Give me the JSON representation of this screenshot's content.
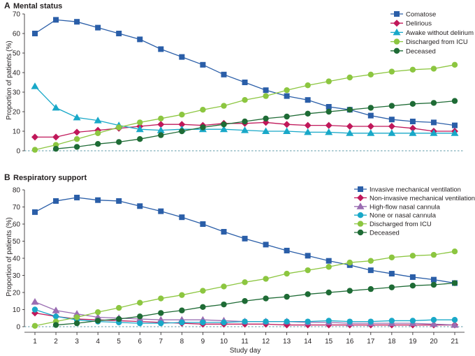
{
  "chart_data": [
    {
      "type": "line",
      "panel_letter": "A",
      "title": "Mental status",
      "ylabel": "Proportion of patients (%)",
      "xlabel": "",
      "ylim": [
        0,
        70
      ],
      "yticks": [
        0,
        10,
        20,
        30,
        40,
        50,
        60,
        70
      ],
      "xlim": [
        1,
        21
      ],
      "legend_position": "top-right",
      "reference_line": 0,
      "series": [
        {
          "name": "Comatose",
          "marker": "square",
          "color": "#2a5ea8",
          "x": [
            1,
            2,
            3,
            4,
            5,
            6,
            7,
            8,
            9,
            10,
            11,
            12,
            13,
            14,
            15,
            16,
            17,
            18,
            19,
            20,
            21
          ],
          "values": [
            60,
            67,
            66,
            63,
            60,
            57,
            52,
            48,
            44,
            39,
            35,
            31,
            28,
            26,
            22.5,
            21,
            18,
            16,
            15,
            14.5,
            13
          ]
        },
        {
          "name": "Delirious",
          "marker": "diamond",
          "color": "#c0185a",
          "x": [
            1,
            2,
            3,
            4,
            5,
            6,
            7,
            8,
            9,
            10,
            11,
            12,
            13,
            14,
            15,
            16,
            17,
            18,
            19,
            20,
            21
          ],
          "values": [
            7,
            7,
            9.5,
            10.5,
            11.5,
            12.5,
            13.5,
            13.5,
            13,
            14,
            14,
            14.5,
            13.5,
            13,
            13,
            12.5,
            12.5,
            12.5,
            11.5,
            10,
            10
          ]
        },
        {
          "name": "Awake without delirium",
          "marker": "triangle",
          "color": "#18a8c8",
          "x": [
            1,
            2,
            3,
            4,
            5,
            6,
            7,
            8,
            9,
            10,
            11,
            12,
            13,
            14,
            15,
            16,
            17,
            18,
            19,
            20,
            21
          ],
          "values": [
            33,
            22,
            17,
            15.5,
            13,
            11,
            10.5,
            11,
            11,
            11,
            10.5,
            10,
            10,
            9.5,
            9.5,
            9,
            9,
            9,
            9,
            9,
            9
          ]
        },
        {
          "name": "Discharged from ICU",
          "marker": "circle",
          "color": "#8cc640",
          "x": [
            1,
            2,
            3,
            4,
            5,
            6,
            7,
            8,
            9,
            10,
            11,
            12,
            13,
            14,
            15,
            16,
            17,
            18,
            19,
            20,
            21
          ],
          "values": [
            0.5,
            3,
            6,
            9,
            12,
            14.5,
            16.5,
            18.5,
            21,
            23,
            26,
            28,
            31,
            33.5,
            35.5,
            37.5,
            39,
            40.5,
            41.5,
            42,
            44
          ]
        },
        {
          "name": "Deceased",
          "marker": "circle",
          "color": "#1e6b35",
          "x": [
            2,
            3,
            4,
            5,
            6,
            7,
            8,
            9,
            10,
            11,
            12,
            13,
            14,
            15,
            16,
            17,
            18,
            19,
            20,
            21
          ],
          "values": [
            1,
            2,
            3.5,
            4.5,
            6,
            8,
            10,
            12,
            13.5,
            15,
            16.5,
            17.5,
            19,
            20,
            21,
            22,
            23,
            24,
            24.5,
            25.5
          ]
        }
      ]
    },
    {
      "type": "line",
      "panel_letter": "B",
      "title": "Respiratory support",
      "ylabel": "Proportion of patients (%)",
      "xlabel": "Study day",
      "ylim": [
        0,
        80
      ],
      "yticks": [
        0,
        10,
        20,
        30,
        40,
        50,
        60,
        70,
        80
      ],
      "xlim": [
        1,
        21
      ],
      "xticks": [
        1,
        2,
        3,
        4,
        5,
        6,
        7,
        8,
        9,
        10,
        11,
        12,
        13,
        14,
        15,
        16,
        17,
        18,
        19,
        20,
        21
      ],
      "legend_position": "top-right",
      "reference_line": 0,
      "series": [
        {
          "name": "Invasive mechanical ventilation",
          "marker": "square",
          "color": "#2a5ea8",
          "x": [
            1,
            2,
            3,
            4,
            5,
            6,
            7,
            8,
            9,
            10,
            11,
            12,
            13,
            14,
            15,
            16,
            17,
            18,
            19,
            20,
            21
          ],
          "values": [
            67,
            73.5,
            75.5,
            74,
            73.5,
            70.5,
            67.5,
            64,
            60,
            55.5,
            51.5,
            48,
            44.5,
            41.5,
            38.5,
            36,
            33,
            31,
            29,
            27.5,
            25.5
          ]
        },
        {
          "name": "Non-invasive mechanical ventilation",
          "marker": "diamond",
          "color": "#c0185a",
          "x": [
            1,
            2,
            3,
            4,
            5,
            6,
            7,
            8,
            9,
            10,
            11,
            12,
            13,
            14,
            15,
            16,
            17,
            18,
            19,
            20,
            21
          ],
          "values": [
            8,
            6,
            4.5,
            4,
            3.5,
            3,
            2.5,
            2,
            1.5,
            1.5,
            1.5,
            1.5,
            1,
            1,
            1,
            1,
            1,
            1,
            1,
            1,
            1
          ]
        },
        {
          "name": "High-flow nasal cannula",
          "marker": "triangle",
          "color": "#9a6db2",
          "x": [
            1,
            2,
            3,
            4,
            5,
            6,
            7,
            8,
            9,
            10,
            11,
            12,
            13,
            14,
            15,
            16,
            17,
            18,
            19,
            20,
            21
          ],
          "values": [
            14.5,
            9.5,
            7.5,
            5.5,
            5,
            4.5,
            4,
            4,
            4,
            3.5,
            3,
            3,
            3,
            2.5,
            2.5,
            2,
            2,
            2,
            2,
            1.5,
            1
          ]
        },
        {
          "name": "None or nasal cannula",
          "marker": "circle",
          "color": "#18a8c8",
          "x": [
            1,
            2,
            3,
            4,
            5,
            6,
            7,
            8,
            9,
            10,
            11,
            12,
            13,
            14,
            15,
            16,
            17,
            18,
            19,
            20,
            21
          ],
          "values": [
            10,
            6,
            4,
            3,
            2.5,
            2,
            2,
            2.5,
            2.5,
            2.5,
            3,
            3,
            3,
            3,
            3.5,
            3,
            3,
            3.5,
            3.5,
            4,
            4
          ]
        },
        {
          "name": "Discharged from ICU",
          "marker": "circle",
          "color": "#8cc640",
          "x": [
            1,
            2,
            3,
            4,
            5,
            6,
            7,
            8,
            9,
            10,
            11,
            12,
            13,
            14,
            15,
            16,
            17,
            18,
            19,
            20,
            21
          ],
          "values": [
            0.5,
            3,
            5.5,
            8.5,
            11,
            14,
            16.5,
            18.5,
            21,
            23.5,
            26,
            28,
            31,
            33,
            35,
            37.5,
            38.5,
            40.5,
            41.5,
            42,
            44
          ]
        },
        {
          "name": "Deceased",
          "marker": "circle",
          "color": "#1e6b35",
          "x": [
            2,
            3,
            4,
            5,
            6,
            7,
            8,
            9,
            10,
            11,
            12,
            13,
            14,
            15,
            16,
            17,
            18,
            19,
            20,
            21
          ],
          "values": [
            1,
            2,
            3.5,
            4.5,
            6,
            8,
            9.5,
            11.5,
            13,
            15,
            16.5,
            17.5,
            19,
            20,
            21,
            22,
            23,
            24,
            24.5,
            25.5
          ]
        }
      ]
    }
  ]
}
